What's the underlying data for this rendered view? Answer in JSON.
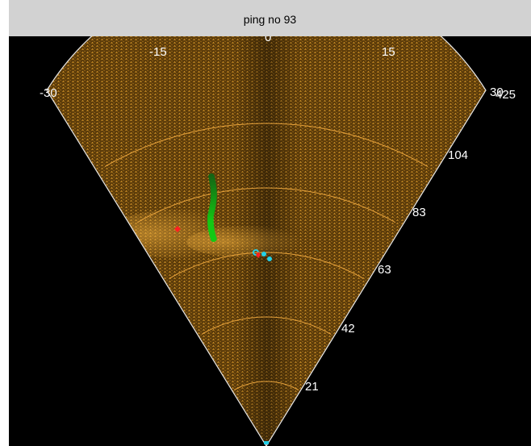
{
  "window": {
    "title": "ping no 93"
  },
  "sonar": {
    "angle_labels": [
      "-30",
      "-15",
      "0",
      "15",
      "30"
    ],
    "angle_label_overlap": "425",
    "range_labels": [
      "21",
      "42",
      "63",
      "83",
      "104"
    ],
    "colors": {
      "background": "#000000",
      "echo": "#7a5210",
      "grid": "#e6a23c",
      "track_green": "#22c422",
      "marker_red": "#ff2020",
      "marker_cyan": "#22d0e8",
      "label": "#ffffff"
    },
    "targets": [
      {
        "name": "track-green",
        "description": "vertical green tracked target"
      },
      {
        "name": "marker-red-left"
      },
      {
        "name": "marker-cyan-center"
      }
    ]
  }
}
